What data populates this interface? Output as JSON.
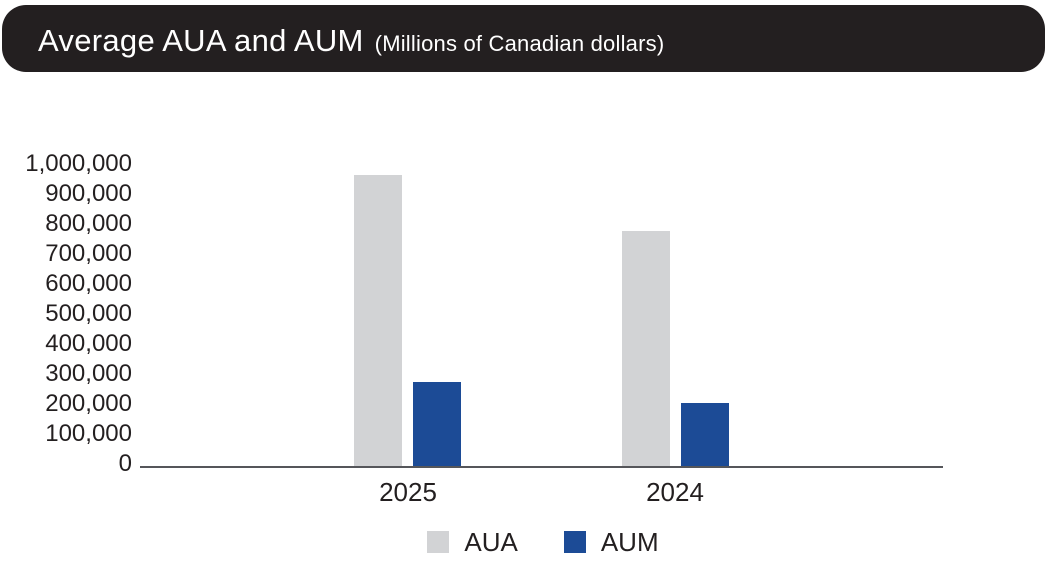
{
  "header": {
    "title": "Average AUA and AUM",
    "subtitle": "(Millions of Canadian dollars)"
  },
  "chart_data": {
    "type": "bar",
    "title": "Average AUA and AUM",
    "subtitle": "(Millions of Canadian dollars)",
    "categories": [
      "2025",
      "2024"
    ],
    "series": [
      {
        "name": "AUA",
        "color": "#d2d3d5",
        "values": [
          970000,
          785000
        ]
      },
      {
        "name": "AUM",
        "color": "#1c4b96",
        "values": [
          280000,
          210000
        ]
      }
    ],
    "ylim": [
      0,
      1000000
    ],
    "ytick_step": 100000,
    "ytick_labels": [
      "0",
      "100,000",
      "200,000",
      "300,000",
      "400,000",
      "500,000",
      "600,000",
      "700,000",
      "800,000",
      "900,000",
      "1,000,000"
    ],
    "grid": false,
    "legend_position": "bottom",
    "legend_items": [
      "AUA",
      "AUM"
    ]
  },
  "colors": {
    "header_bg": "#231f20",
    "text": "#231f20",
    "axis_line": "#55565a",
    "aua_bar": "#d2d3d5",
    "aum_bar": "#1c4b96"
  }
}
